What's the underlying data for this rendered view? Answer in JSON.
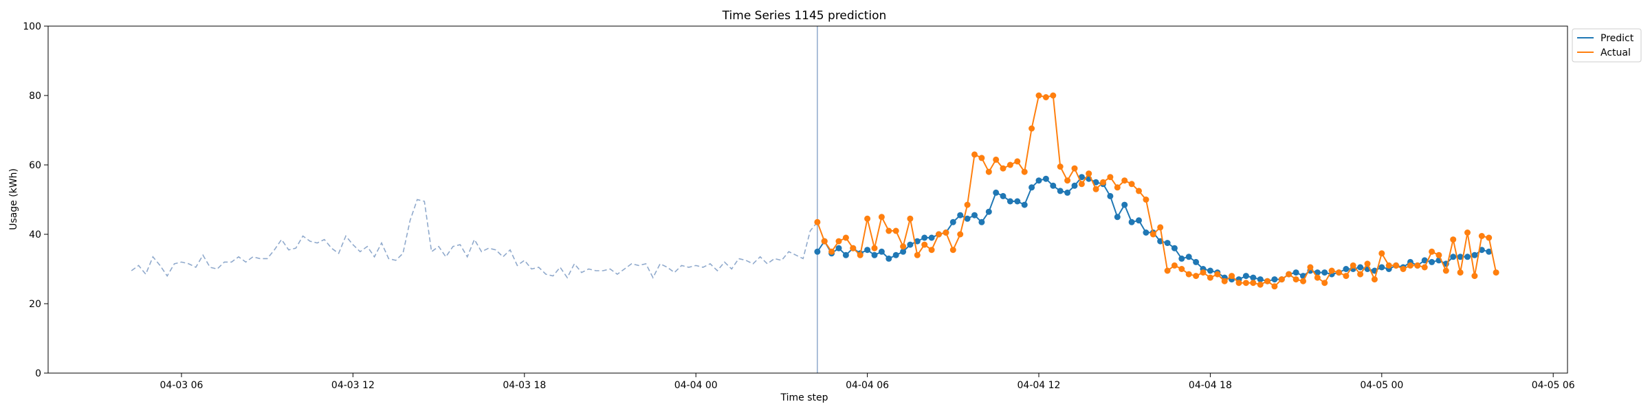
{
  "chart_data": {
    "type": "line",
    "title": "Time Series 1145 prediction",
    "xlabel": "Time step",
    "ylabel": "Usage (kWh)",
    "ylim": [
      0,
      100
    ],
    "xlim": [
      "2025-04-03 01:20",
      "2025-04-05 06:30"
    ],
    "x_ticks": [
      {
        "t": "2025-04-03 06:00",
        "label": "04-03 06"
      },
      {
        "t": "2025-04-03 12:00",
        "label": "04-03 12"
      },
      {
        "t": "2025-04-03 18:00",
        "label": "04-03 18"
      },
      {
        "t": "2025-04-04 00:00",
        "label": "04-04 00"
      },
      {
        "t": "2025-04-04 06:00",
        "label": "04-04 06"
      },
      {
        "t": "2025-04-04 12:00",
        "label": "04-04 12"
      },
      {
        "t": "2025-04-04 18:00",
        "label": "04-04 18"
      },
      {
        "t": "2025-04-05 00:00",
        "label": "04-05 00"
      },
      {
        "t": "2025-04-05 06:00",
        "label": "04-05 06"
      }
    ],
    "y_ticks": [
      0,
      20,
      40,
      60,
      80,
      100
    ],
    "grid": false,
    "legend_position": "outside-top-right",
    "forecast_start": "2025-04-04 04:15",
    "interval_minutes": 15,
    "series": [
      {
        "name": "",
        "style": "dashed",
        "color": "#8fa9cc",
        "start": "2025-04-03 04:15",
        "values": [
          29.5,
          31.0,
          28.5,
          33.5,
          31.0,
          28.0,
          31.5,
          32.0,
          31.5,
          30.5,
          34.0,
          30.5,
          30.0,
          32.0,
          32.0,
          33.5,
          32.0,
          33.5,
          33.0,
          33.0,
          35.5,
          38.5,
          35.5,
          36.0,
          39.5,
          38.0,
          37.5,
          38.5,
          36.0,
          34.5,
          39.5,
          37.0,
          35.0,
          36.5,
          33.5,
          37.5,
          33.0,
          32.5,
          34.5,
          44.0,
          50.0,
          49.5,
          35.0,
          36.5,
          33.5,
          36.5,
          37.0,
          33.5,
          38.5,
          35.0,
          36.0,
          35.5,
          33.5,
          35.5,
          31.0,
          32.5,
          30.0,
          30.5,
          28.5,
          28.0,
          30.5,
          27.5,
          31.5,
          29.0,
          30.0,
          29.5,
          29.5,
          30.0,
          28.5,
          30.0,
          31.5,
          31.0,
          31.5,
          27.5,
          31.5,
          30.5,
          29.0,
          31.0,
          30.5,
          31.0,
          30.5,
          31.5,
          29.5,
          32.0,
          30.0,
          33.0,
          32.5,
          31.5,
          33.5,
          31.5,
          33.0,
          32.5,
          35.0,
          34.0,
          33.0,
          41.0,
          43.5
        ]
      },
      {
        "name": "Predict",
        "style": "line-markers",
        "color": "#1f77b4",
        "start": "2025-04-04 04:15",
        "values": [
          35.0,
          38.0,
          34.5,
          36.0,
          34.0,
          36.0,
          34.5,
          35.5,
          34.0,
          35.0,
          33.0,
          34.0,
          35.0,
          37.0,
          38.0,
          39.0,
          39.0,
          40.0,
          40.5,
          43.5,
          45.5,
          44.5,
          45.5,
          43.5,
          46.5,
          52.0,
          51.0,
          49.5,
          49.5,
          48.5,
          53.5,
          55.5,
          56.0,
          54.0,
          52.5,
          52.0,
          54.0,
          56.5,
          56.0,
          55.0,
          54.5,
          51.0,
          45.0,
          48.5,
          43.5,
          44.0,
          40.5,
          40.5,
          38.0,
          37.5,
          36.0,
          33.0,
          33.5,
          32.0,
          30.0,
          29.5,
          29.0,
          27.5,
          27.0,
          27.0,
          28.0,
          27.5,
          27.0,
          26.5,
          27.0,
          27.0,
          28.5,
          29.0,
          28.0,
          29.5,
          29.0,
          29.0,
          28.5,
          29.0,
          30.0,
          30.0,
          30.5,
          30.0,
          29.5,
          30.5,
          30.0,
          31.0,
          30.5,
          32.0,
          31.0,
          32.5,
          32.0,
          32.5,
          31.5,
          33.5,
          33.5,
          33.5,
          34.0,
          35.5,
          35.0
        ]
      },
      {
        "name": "Actual",
        "style": "line-markers",
        "color": "#ff7f0e",
        "start": "2025-04-04 04:15",
        "values": [
          43.5,
          38.0,
          35.0,
          38.0,
          39.0,
          36.0,
          34.0,
          44.5,
          36.0,
          45.0,
          41.0,
          41.0,
          36.5,
          44.5,
          34.0,
          37.0,
          35.5,
          40.0,
          40.5,
          35.5,
          40.0,
          48.5,
          63.0,
          62.0,
          58.0,
          61.5,
          59.0,
          60.0,
          61.0,
          58.0,
          70.5,
          80.0,
          79.5,
          80.0,
          59.5,
          55.5,
          59.0,
          54.5,
          57.5,
          53.0,
          55.0,
          56.5,
          53.5,
          55.5,
          54.5,
          52.5,
          50.0,
          40.0,
          42.0,
          29.5,
          31.0,
          30.0,
          28.5,
          28.0,
          29.0,
          27.5,
          28.5,
          26.5,
          28.0,
          26.0,
          26.0,
          26.0,
          25.5,
          26.5,
          25.0,
          27.0,
          28.5,
          27.0,
          26.5,
          30.5,
          27.5,
          26.0,
          29.5,
          29.0,
          28.0,
          31.0,
          28.5,
          31.5,
          27.0,
          34.5,
          31.0,
          31.0,
          30.0,
          31.0,
          31.0,
          30.5,
          35.0,
          34.0,
          29.5,
          38.5,
          29.0,
          40.5,
          28.0,
          39.5,
          39.0,
          29.0
        ]
      }
    ]
  }
}
